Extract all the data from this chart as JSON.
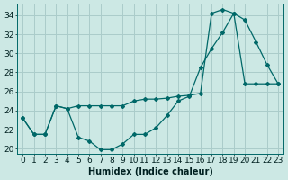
{
  "xlabel": "Humidex (Indice chaleur)",
  "ylabel": "",
  "xlim": [
    -0.5,
    23.5
  ],
  "ylim": [
    19.5,
    35.2
  ],
  "background_color": "#cce8e4",
  "grid_color": "#aaccca",
  "line_color": "#006868",
  "line1_x": [
    0,
    1,
    2,
    3,
    4,
    5,
    6,
    7,
    8,
    9,
    10,
    11,
    12,
    13,
    14,
    15,
    16,
    17,
    18,
    19,
    20,
    21,
    22,
    23
  ],
  "line1_y": [
    23.2,
    21.5,
    21.5,
    24.5,
    24.2,
    21.2,
    20.8,
    19.9,
    19.9,
    20.5,
    21.5,
    21.5,
    22.2,
    23.5,
    25.0,
    25.5,
    28.5,
    30.5,
    32.2,
    34.2,
    33.5,
    31.2,
    28.8,
    26.8
  ],
  "line2_x": [
    0,
    1,
    2,
    3,
    4,
    5,
    6,
    7,
    8,
    9,
    10,
    11,
    12,
    13,
    14,
    15,
    16,
    17,
    18,
    19,
    20,
    21,
    22,
    23
  ],
  "line2_y": [
    23.2,
    21.5,
    21.5,
    24.5,
    24.2,
    24.5,
    24.5,
    24.5,
    24.5,
    24.5,
    25.0,
    25.2,
    25.2,
    25.3,
    25.5,
    25.6,
    25.8,
    34.2,
    34.6,
    34.2,
    26.8,
    26.8,
    26.8,
    26.8
  ],
  "xtick_labels": [
    "0",
    "1",
    "2",
    "3",
    "4",
    "5",
    "6",
    "7",
    "8",
    "9",
    "10",
    "11",
    "12",
    "13",
    "14",
    "15",
    "16",
    "17",
    "18",
    "19",
    "20",
    "21",
    "22",
    "23"
  ],
  "ytick_vals": [
    20,
    22,
    24,
    26,
    28,
    30,
    32,
    34
  ],
  "fontsize_label": 7,
  "fontsize_tick": 6.5
}
